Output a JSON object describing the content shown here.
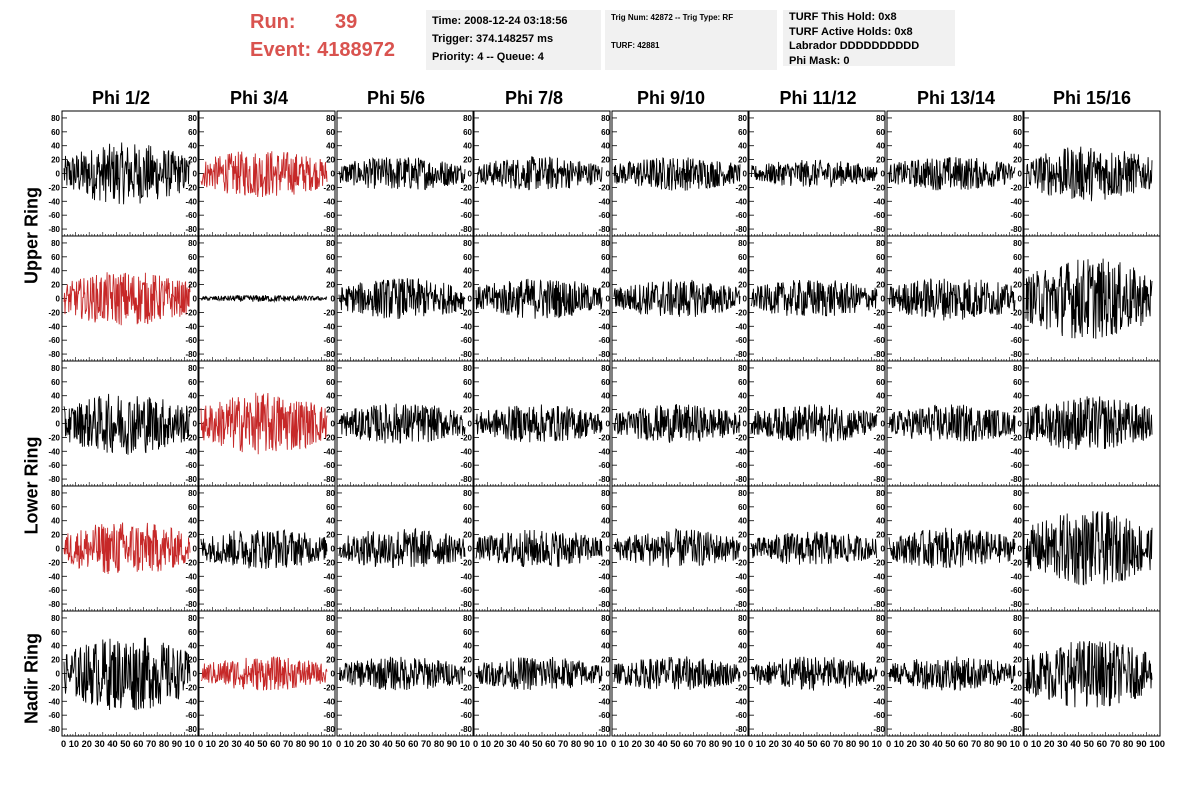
{
  "header": {
    "run_label": "Run:",
    "run_value": "39",
    "event_label": "Event:",
    "event_value": "4188972",
    "time": "Time: 2008-12-24 03:18:56",
    "trigger": "Trigger: 374.148257 ms",
    "priority": "Priority: 4 -- Queue: 4",
    "trig_num": "Trig Num: 42872 -- Trig Type: RF",
    "turf": "TURF: 42881",
    "turf_this_hold": "TURF This Hold: 0x8",
    "turf_active_holds": "TURF Active Holds: 0x8",
    "labrador": "Labrador DDDDDDDDDD",
    "phi_mask": "Phi Mask: 0"
  },
  "colors": {
    "highlight": "#c62828",
    "normal": "#000000",
    "header_red": "#d9534f",
    "panel_bg": "#f1f1f1"
  },
  "chart_data": {
    "type": "line",
    "columns": [
      "Phi 1/2",
      "Phi 3/4",
      "Phi 5/6",
      "Phi 7/8",
      "Phi 9/10",
      "Phi 11/12",
      "Phi 13/14",
      "Phi 15/16"
    ],
    "row_labels": [
      "Upper Ring",
      "Lower Ring",
      "Nadir Ring"
    ],
    "rows": 5,
    "row_label_spans": [
      [
        0,
        1
      ],
      [
        2,
        3
      ],
      [
        4,
        4
      ]
    ],
    "ylim": [
      -90,
      90
    ],
    "yticks": [
      -80,
      -60,
      -40,
      -20,
      0,
      20,
      40,
      60,
      80
    ],
    "xlim": [
      0,
      100
    ],
    "xticks": [
      0,
      10,
      20,
      30,
      40,
      50,
      60,
      70,
      80,
      90,
      100
    ],
    "x_tick_labels": "0 10 20 30 40 50 60 70 80 90 10",
    "x_tick_labels_last": "0 10 20 30 40 50 60 70 80 90 100",
    "highlighted_panels": [
      [
        0,
        1
      ],
      [
        1,
        0
      ],
      [
        2,
        1
      ],
      [
        3,
        0
      ],
      [
        4,
        1
      ]
    ],
    "amplitudes": [
      [
        45,
        35,
        25,
        25,
        25,
        20,
        25,
        40
      ],
      [
        40,
        5,
        30,
        30,
        28,
        28,
        32,
        60
      ],
      [
        45,
        45,
        30,
        28,
        28,
        28,
        28,
        40
      ],
      [
        40,
        30,
        30,
        28,
        28,
        25,
        30,
        55
      ],
      [
        55,
        25,
        25,
        25,
        25,
        25,
        25,
        50
      ]
    ]
  }
}
